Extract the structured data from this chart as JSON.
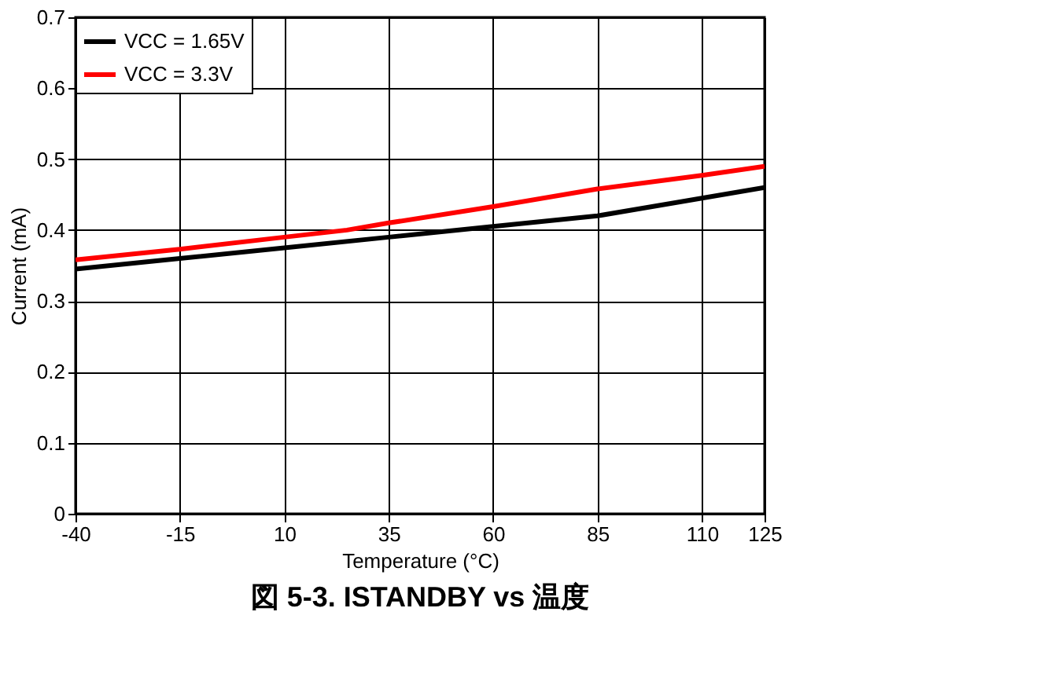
{
  "chart_data": {
    "type": "line",
    "title": "図 5-3. ISTANDBY vs 温度",
    "xlabel": "Temperature (°C)",
    "ylabel": "Current (mA)",
    "xlim": [
      -40,
      125
    ],
    "xticks": [
      -40,
      -15,
      10,
      35,
      60,
      85,
      110,
      125
    ],
    "ylim": [
      0,
      0.7
    ],
    "yticks": [
      0,
      0.1,
      0.2,
      0.3,
      0.4,
      0.5,
      0.6,
      0.7
    ],
    "grid": true,
    "legend": "top left",
    "marker": "none",
    "line_style": "solid",
    "series": [
      {
        "name": "VCC = 1.65V",
        "color": "#000000",
        "x": [
          -40,
          -15,
          10,
          35,
          60,
          85,
          110,
          125
        ],
        "values": [
          0.345,
          0.36,
          0.375,
          0.39,
          0.405,
          0.42,
          0.445,
          0.46
        ]
      },
      {
        "name": "VCC = 3.3V",
        "color": "#ff0000",
        "x": [
          -40,
          -15,
          10,
          25,
          35,
          60,
          85,
          110,
          125
        ],
        "values": [
          0.358,
          0.373,
          0.39,
          0.4,
          0.41,
          0.433,
          0.458,
          0.477,
          0.49
        ]
      }
    ]
  }
}
